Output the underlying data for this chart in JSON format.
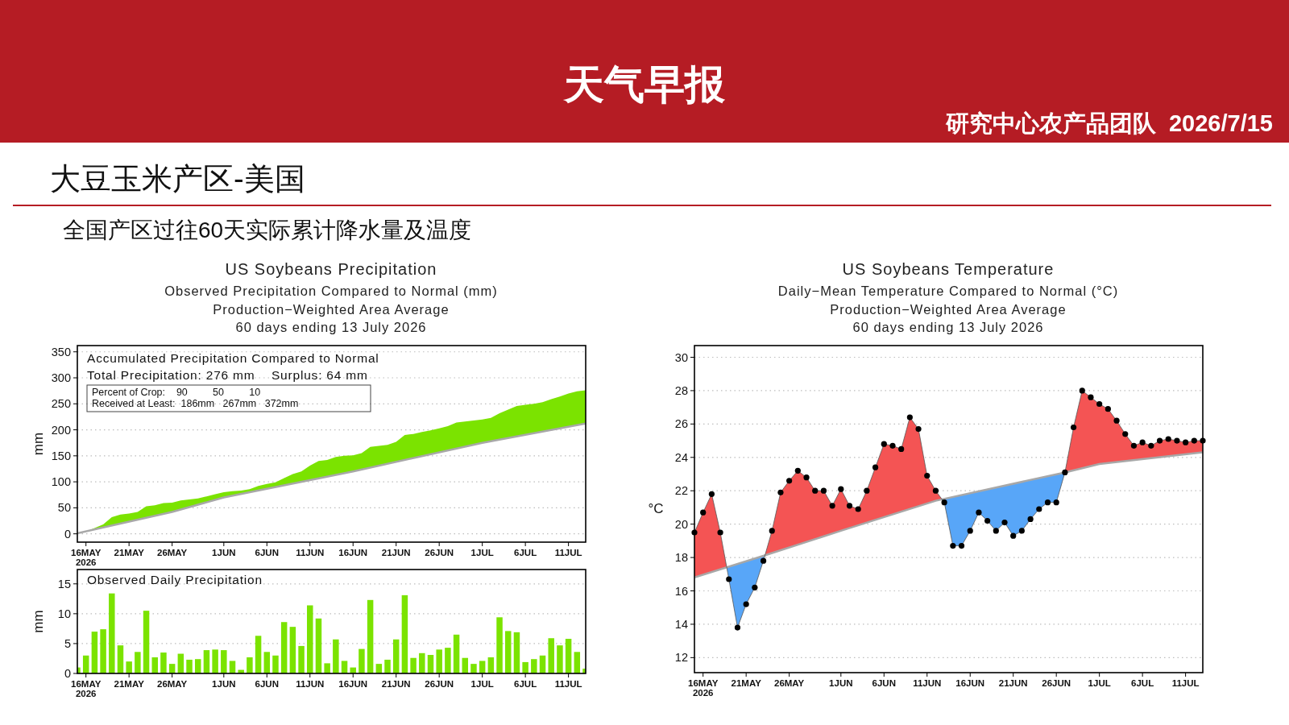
{
  "chart_data": [
    {
      "type": "area",
      "title": "US Soybeans Precipitation",
      "subtitle": "Observed Precipitation Compared to Normal (mm)\nProduction−Weighted Area Average\n60 days ending 13 July 2026",
      "ylabel": "mm",
      "annotations": [
        "天气早报",
        "研究中心农产品团队  2026/7/15",
        "大豆玉米产区-美国",
        "全国产区过往60天实际累计降水量及温度",
        "Accumulated Precipitation Compared to Normal",
        "Total Precipitation: 276 mm    Surplus: 64 mm",
        "Percent of Crop:    90         50         10",
        "Received at Least:  186mm   267mm   372mm"
      ],
      "x": [
        "2026-05-15",
        "2026-05-16",
        "2026-05-17",
        "2026-05-18",
        "2026-05-19",
        "2026-05-20",
        "2026-05-21",
        "2026-05-22",
        "2026-05-23",
        "2026-05-24",
        "2026-05-25",
        "2026-05-26",
        "2026-05-27",
        "2026-05-28",
        "2026-05-29",
        "2026-05-30",
        "2026-05-31",
        "2026-06-01",
        "2026-06-02",
        "2026-06-03",
        "2026-06-04",
        "2026-06-05",
        "2026-06-06",
        "2026-06-07",
        "2026-06-08",
        "2026-06-09",
        "2026-06-10",
        "2026-06-11",
        "2026-06-12",
        "2026-06-13",
        "2026-06-14",
        "2026-06-15",
        "2026-06-16",
        "2026-06-17",
        "2026-06-18",
        "2026-06-19",
        "2026-06-20",
        "2026-06-21",
        "2026-06-22",
        "2026-06-23",
        "2026-06-24",
        "2026-06-25",
        "2026-06-26",
        "2026-06-27",
        "2026-06-28",
        "2026-06-29",
        "2026-06-30",
        "2026-07-01",
        "2026-07-02",
        "2026-07-03",
        "2026-07-04",
        "2026-07-05",
        "2026-07-06",
        "2026-07-07",
        "2026-07-08",
        "2026-07-09",
        "2026-07-10",
        "2026-07-11",
        "2026-07-12",
        "2026-07-13"
      ],
      "series": [
        {
          "type": "area",
          "color": "#7be300",
          "values": [
            1,
            4,
            11,
            18,
            32,
            37,
            39,
            42,
            53,
            55,
            59,
            60,
            64,
            66,
            68,
            72,
            76,
            80,
            82,
            83,
            86,
            92,
            96,
            99,
            107,
            115,
            120,
            131,
            140,
            142,
            148,
            150,
            151,
            155,
            167,
            169,
            171,
            177,
            190,
            192,
            196,
            199,
            203,
            207,
            214,
            216,
            218,
            220,
            223,
            232,
            239,
            246,
            248,
            250,
            253,
            259,
            264,
            270,
            274,
            276
          ]
        },
        {
          "type": "line",
          "color": "#a8a8a8",
          "x": [
            "2026-05-15",
            "2026-05-26",
            "2026-06-01",
            "2026-06-16",
            "2026-07-01",
            "2026-07-13"
          ],
          "values": [
            1,
            42,
            70,
            120,
            175,
            212
          ]
        }
      ],
      "xlim": [
        "2026-05-15",
        "2026-07-13"
      ],
      "ylim": [
        -16,
        362
      ],
      "yticks": [
        0,
        50,
        100,
        150,
        200,
        250,
        300,
        350
      ],
      "grid": "y",
      "xticks": [
        {
          "value": "2026-05-16",
          "label": "16MAY\n2026"
        },
        {
          "value": "2026-05-21",
          "label": "21MAY"
        },
        {
          "value": "2026-05-26",
          "label": "26MAY"
        },
        {
          "value": "2026-06-01",
          "label": "1JUN"
        },
        {
          "value": "2026-06-06",
          "label": "6JUN"
        },
        {
          "value": "2026-06-11",
          "label": "11JUN"
        },
        {
          "value": "2026-06-16",
          "label": "16JUN"
        },
        {
          "value": "2026-06-21",
          "label": "21JUN"
        },
        {
          "value": "2026-06-26",
          "label": "26JUN"
        },
        {
          "value": "2026-07-01",
          "label": "1JUL"
        },
        {
          "value": "2026-07-06",
          "label": "6JUL"
        },
        {
          "value": "2026-07-11",
          "label": "11JUL"
        }
      ]
    },
    {
      "type": "bar",
      "ylabel": "mm",
      "annotations": [
        "Observed Daily Precipitation"
      ],
      "color": "#7be300",
      "x": [
        "2026-05-15",
        "2026-05-16",
        "2026-05-17",
        "2026-05-18",
        "2026-05-19",
        "2026-05-20",
        "2026-05-21",
        "2026-05-22",
        "2026-05-23",
        "2026-05-24",
        "2026-05-25",
        "2026-05-26",
        "2026-05-27",
        "2026-05-28",
        "2026-05-29",
        "2026-05-30",
        "2026-05-31",
        "2026-06-01",
        "2026-06-02",
        "2026-06-03",
        "2026-06-04",
        "2026-06-05",
        "2026-06-06",
        "2026-06-07",
        "2026-06-08",
        "2026-06-09",
        "2026-06-10",
        "2026-06-11",
        "2026-06-12",
        "2026-06-13",
        "2026-06-14",
        "2026-06-15",
        "2026-06-16",
        "2026-06-17",
        "2026-06-18",
        "2026-06-19",
        "2026-06-20",
        "2026-06-21",
        "2026-06-22",
        "2026-06-23",
        "2026-06-24",
        "2026-06-25",
        "2026-06-26",
        "2026-06-27",
        "2026-06-28",
        "2026-06-29",
        "2026-06-30",
        "2026-07-01",
        "2026-07-02",
        "2026-07-03",
        "2026-07-04",
        "2026-07-05",
        "2026-07-06",
        "2026-07-07",
        "2026-07-08",
        "2026-07-09",
        "2026-07-10",
        "2026-07-11",
        "2026-07-12",
        "2026-07-13"
      ],
      "values": [
        1.0,
        3.0,
        7.0,
        7.4,
        13.4,
        4.7,
        2.0,
        3.6,
        10.5,
        2.7,
        3.5,
        1.6,
        3.3,
        2.3,
        2.4,
        3.9,
        4.0,
        3.9,
        2.1,
        0.6,
        2.7,
        6.3,
        3.6,
        3.0,
        8.6,
        7.8,
        4.6,
        11.4,
        9.2,
        1.7,
        5.7,
        2.1,
        1.0,
        4.1,
        12.3,
        1.6,
        2.3,
        5.7,
        13.1,
        2.6,
        3.4,
        3.1,
        4.0,
        4.3,
        6.5,
        2.6,
        1.6,
        2.1,
        2.7,
        9.4,
        7.1,
        6.9,
        1.9,
        2.4,
        3.0,
        5.9,
        4.7,
        5.8,
        3.6,
        0.8
      ],
      "xlim": [
        "2026-05-15",
        "2026-07-13"
      ],
      "ylim": [
        0,
        17.4
      ],
      "yticks": [
        0,
        5,
        10,
        15
      ],
      "grid": "y",
      "xticks": [
        {
          "value": "2026-05-16",
          "label": "16MAY\n2026"
        },
        {
          "value": "2026-05-21",
          "label": "21MAY"
        },
        {
          "value": "2026-05-26",
          "label": "26MAY"
        },
        {
          "value": "2026-06-01",
          "label": "1JUN"
        },
        {
          "value": "2026-06-06",
          "label": "6JUN"
        },
        {
          "value": "2026-06-11",
          "label": "11JUN"
        },
        {
          "value": "2026-06-16",
          "label": "16JUN"
        },
        {
          "value": "2026-06-21",
          "label": "21JUN"
        },
        {
          "value": "2026-06-26",
          "label": "26JUN"
        },
        {
          "value": "2026-07-01",
          "label": "1JUL"
        },
        {
          "value": "2026-07-06",
          "label": "6JUL"
        },
        {
          "value": "2026-07-11",
          "label": "11JUL"
        }
      ]
    },
    {
      "type": "line",
      "title": "US Soybeans Temperature",
      "subtitle": "Daily−Mean Temperature Compared to Normal (°C)\nProduction−Weighted Area Average\n60 days ending 13 July 2026",
      "ylabel": "°C",
      "colors": [
        "#f45454",
        "#58a6f8"
      ],
      "x": [
        "2026-05-15",
        "2026-05-16",
        "2026-05-17",
        "2026-05-18",
        "2026-05-19",
        "2026-05-20",
        "2026-05-21",
        "2026-05-22",
        "2026-05-23",
        "2026-05-24",
        "2026-05-25",
        "2026-05-26",
        "2026-05-27",
        "2026-05-28",
        "2026-05-29",
        "2026-05-30",
        "2026-05-31",
        "2026-06-01",
        "2026-06-02",
        "2026-06-03",
        "2026-06-04",
        "2026-06-05",
        "2026-06-06",
        "2026-06-07",
        "2026-06-08",
        "2026-06-09",
        "2026-06-10",
        "2026-06-11",
        "2026-06-12",
        "2026-06-13",
        "2026-06-14",
        "2026-06-15",
        "2026-06-16",
        "2026-06-17",
        "2026-06-18",
        "2026-06-19",
        "2026-06-20",
        "2026-06-21",
        "2026-06-22",
        "2026-06-23",
        "2026-06-24",
        "2026-06-25",
        "2026-06-26",
        "2026-06-27",
        "2026-06-28",
        "2026-06-29",
        "2026-06-30",
        "2026-07-01",
        "2026-07-02",
        "2026-07-03",
        "2026-07-04",
        "2026-07-05",
        "2026-07-06",
        "2026-07-07",
        "2026-07-08",
        "2026-07-09",
        "2026-07-10",
        "2026-07-11",
        "2026-07-12",
        "2026-07-13"
      ],
      "series": [
        {
          "type": "line",
          "color": "#000000",
          "marker": "circle",
          "values": [
            19.5,
            20.7,
            21.8,
            19.5,
            16.7,
            13.8,
            15.2,
            16.2,
            17.8,
            19.6,
            21.9,
            22.6,
            23.2,
            22.8,
            22.0,
            22.0,
            21.1,
            22.1,
            21.1,
            20.9,
            22.0,
            23.4,
            24.8,
            24.7,
            24.5,
            26.4,
            25.7,
            22.9,
            22.0,
            21.3,
            18.7,
            18.7,
            19.6,
            20.7,
            20.2,
            19.6,
            20.1,
            19.3,
            19.6,
            20.3,
            20.9,
            21.3,
            21.3,
            23.1,
            25.8,
            28.0,
            27.6,
            27.2,
            26.9,
            26.2,
            25.4,
            24.7,
            24.9,
            24.7,
            25.0,
            25.1,
            25.0,
            24.9,
            25.0,
            25.0
          ]
        },
        {
          "type": "line",
          "color": "#a8a8a8",
          "x": [
            "2026-05-15",
            "2026-05-23",
            "2026-06-01",
            "2026-06-12",
            "2026-06-27",
            "2026-07-01",
            "2026-07-13"
          ],
          "values": [
            16.8,
            18.1,
            19.6,
            21.4,
            23.1,
            23.6,
            24.3
          ]
        }
      ],
      "xlim": [
        "2026-05-15",
        "2026-07-13"
      ],
      "ylim": [
        11.1,
        30.7
      ],
      "yticks": [
        12,
        14,
        16,
        18,
        20,
        22,
        24,
        26,
        28,
        30
      ],
      "grid": "y",
      "xticks": [
        {
          "value": "2026-05-16",
          "label": "16MAY\n2026"
        },
        {
          "value": "2026-05-21",
          "label": "21MAY"
        },
        {
          "value": "2026-05-26",
          "label": "26MAY"
        },
        {
          "value": "2026-06-01",
          "label": "1JUN"
        },
        {
          "value": "2026-06-06",
          "label": "6JUN"
        },
        {
          "value": "2026-06-11",
          "label": "11JUN"
        },
        {
          "value": "2026-06-16",
          "label": "16JUN"
        },
        {
          "value": "2026-06-21",
          "label": "21JUN"
        },
        {
          "value": "2026-06-26",
          "label": "26JUN"
        },
        {
          "value": "2026-07-01",
          "label": "1JUL"
        },
        {
          "value": "2026-07-06",
          "label": "6JUL"
        },
        {
          "value": "2026-07-11",
          "label": "11JUL"
        }
      ]
    }
  ]
}
